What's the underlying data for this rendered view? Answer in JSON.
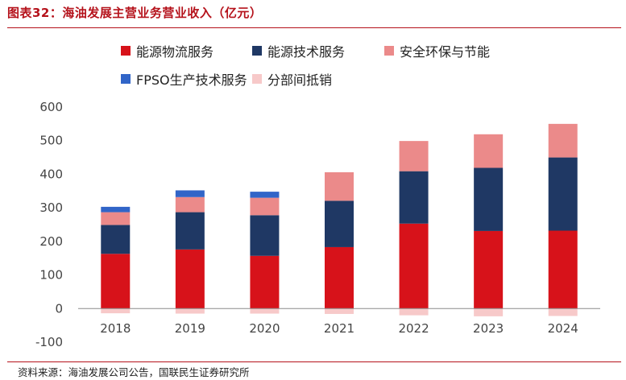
{
  "title": "图表32：海油发展主营业务营业收入（亿元）",
  "source": "资料来源：海油发展公司公告，国联民生证券研究所",
  "chart_data": {
    "type": "bar",
    "stacked": true,
    "categories": [
      "2018",
      "2019",
      "2020",
      "2021",
      "2022",
      "2023",
      "2024"
    ],
    "ylim": [
      -100,
      600
    ],
    "yticks": [
      "600",
      "500",
      "400",
      "300",
      "200",
      "100",
      "0",
      "-100"
    ],
    "grid": false,
    "legend_position": "top",
    "series": [
      {
        "name": "能源物流服务",
        "color": "#d7121a",
        "values": [
          163,
          176,
          157,
          183,
          253,
          231,
          232
        ]
      },
      {
        "name": "能源技术服务",
        "color": "#1f3864",
        "values": [
          86,
          111,
          121,
          138,
          156,
          188,
          218
        ]
      },
      {
        "name": "安全环保与节能",
        "color": "#eb8a8a",
        "values": [
          38,
          45,
          52,
          85,
          90,
          100,
          100
        ]
      },
      {
        "name": "FPSO生产技术服务",
        "color": "#3165c8",
        "values": [
          16,
          20,
          18,
          0,
          0,
          0,
          0
        ]
      },
      {
        "name": "分部间抵销",
        "color": "#f7c9c9",
        "values": [
          -14,
          -15,
          -15,
          -16,
          -20,
          -23,
          -22
        ]
      }
    ]
  }
}
